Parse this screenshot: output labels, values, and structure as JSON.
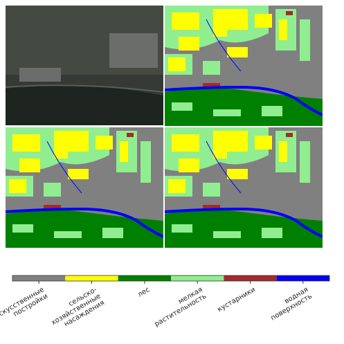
{
  "legend": {
    "classes": [
      {
        "label": [
          "искусственные",
          "постройки"
        ],
        "color": "#808080"
      },
      {
        "label": [
          "сельско-",
          "хозяйственные",
          "насаждения"
        ],
        "color": "#ffff00"
      },
      {
        "label": [
          "лес"
        ],
        "color": "#008000"
      },
      {
        "label": [
          "мелкая",
          "растительность"
        ],
        "color": "#90ee90"
      },
      {
        "label": [
          "кустарники"
        ],
        "color": "#a52a2a"
      },
      {
        "label": [
          "водная",
          "поверхность"
        ],
        "color": "#0000ff"
      }
    ]
  }
}
